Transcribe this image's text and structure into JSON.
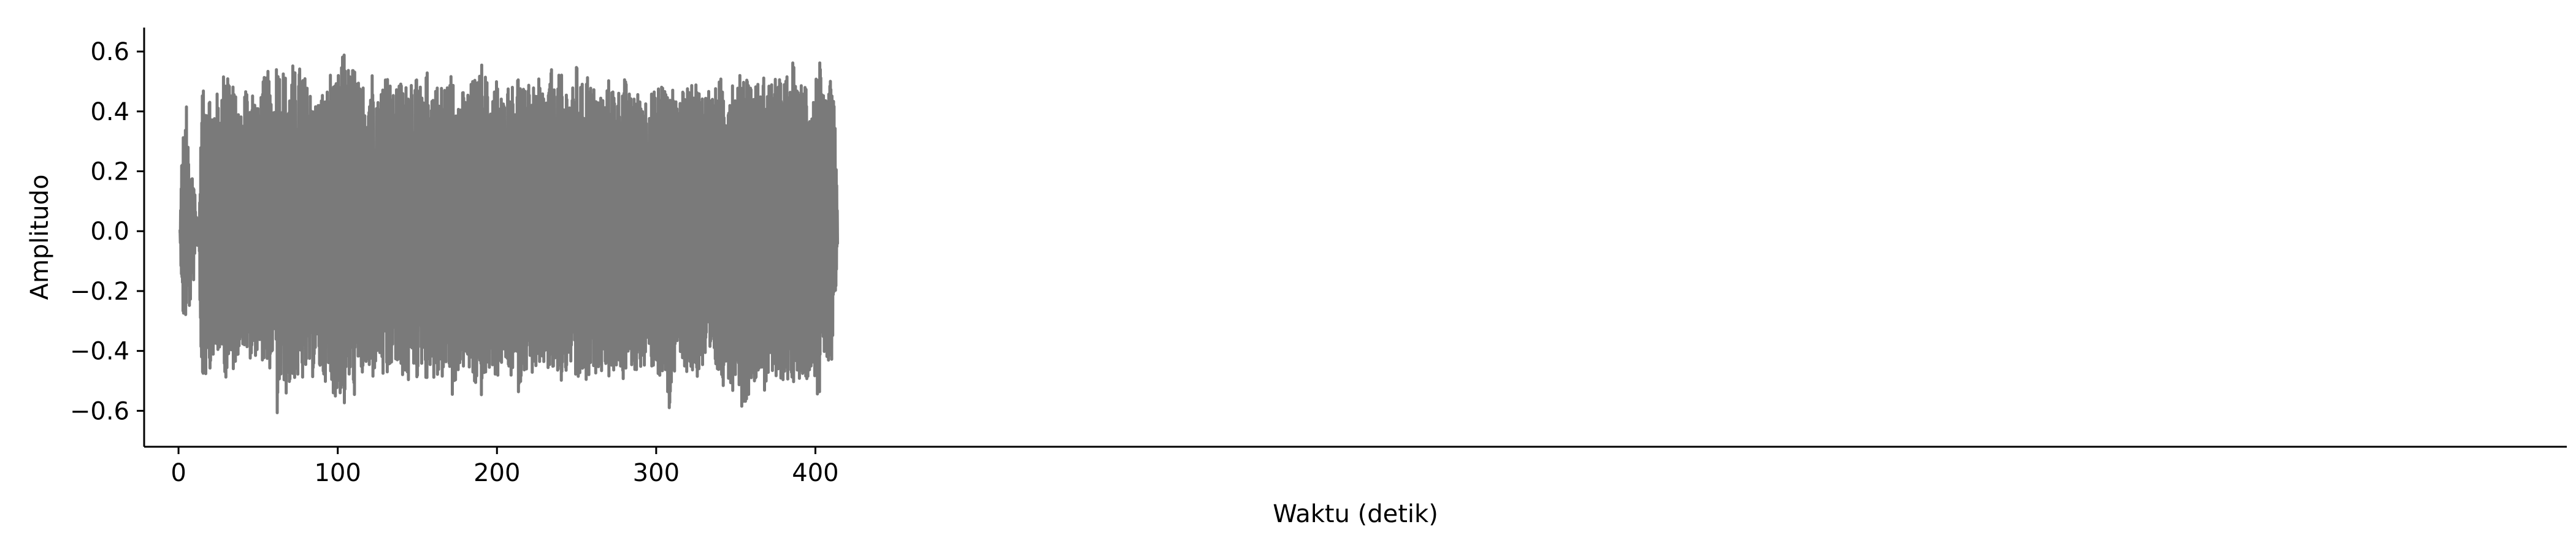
{
  "chart_data": {
    "type": "line",
    "title": "",
    "xlabel": "Waktu (detik)",
    "ylabel": "Amplitudo",
    "xlim": [
      -21.6,
      1500
    ],
    "ylim": [
      -0.72,
      0.68
    ],
    "x_ticks": [
      0,
      100,
      200,
      300,
      400
    ],
    "x_tick_labels": [
      "0",
      "100",
      "200",
      "300",
      "400"
    ],
    "y_ticks": [
      -0.6,
      -0.4,
      -0.2,
      0.0,
      0.2,
      0.4,
      0.6
    ],
    "y_tick_labels": [
      "−0.6",
      "−0.4",
      "−0.2",
      "0.0",
      "0.2",
      "0.4",
      "0.6"
    ],
    "grid": false,
    "legend": "none",
    "color": "#7a7a7a",
    "series": [
      {
        "x": [
          0,
          1,
          2,
          3,
          4,
          5,
          6,
          7,
          8,
          9,
          10,
          11,
          12,
          13,
          14,
          15,
          16,
          17,
          18,
          19,
          20,
          22,
          24,
          26,
          28,
          30,
          32,
          34,
          36,
          38,
          40,
          42,
          44,
          46,
          48,
          50,
          52,
          54,
          56,
          58,
          60,
          62,
          64,
          66,
          68,
          70,
          72,
          74,
          76,
          78,
          80,
          82,
          84,
          86,
          88,
          90,
          92,
          94,
          96,
          98,
          100,
          102,
          104,
          106,
          108,
          110,
          112,
          114,
          116,
          118,
          120,
          122,
          124,
          126,
          128,
          130,
          132,
          134,
          136,
          138,
          140,
          142,
          144,
          146,
          148,
          150,
          152,
          154,
          156,
          158,
          160,
          162,
          164,
          166,
          168,
          170,
          172,
          174,
          176,
          178,
          180,
          182,
          184,
          186,
          188,
          190,
          192,
          194,
          196,
          198,
          200,
          202,
          204,
          206,
          208,
          210,
          212,
          214,
          216,
          218,
          220,
          222,
          224,
          226,
          228,
          230,
          232,
          234,
          236,
          238,
          240,
          242,
          244,
          246,
          248,
          250,
          252,
          254,
          256,
          258,
          260,
          262,
          264,
          266,
          268,
          270,
          272,
          274,
          276,
          278,
          280,
          282,
          284,
          286,
          288,
          290,
          292,
          294,
          296,
          298,
          300,
          302,
          304,
          306,
          308,
          310,
          312,
          314,
          316,
          318,
          320,
          322,
          324,
          326,
          328,
          330,
          332,
          334,
          336,
          338,
          340,
          342,
          344,
          346,
          348,
          350,
          352,
          354,
          356,
          358,
          360,
          362,
          364,
          366,
          368,
          370,
          372,
          374,
          376,
          378,
          380,
          382,
          384,
          386,
          388,
          390,
          392,
          394,
          396,
          398,
          400,
          402,
          404,
          406,
          408,
          410,
          412,
          414,
          416,
          418,
          420,
          422,
          424,
          426,
          428,
          430,
          432
        ],
        "y_max": [
          0.0,
          0.0,
          0.24,
          0.33,
          0.3,
          0.45,
          0.28,
          0.18,
          0.2,
          0.2,
          0.18,
          0.05,
          0.05,
          0.05,
          0.3,
          0.5,
          0.45,
          0.45,
          0.55,
          0.5,
          0.45,
          0.42,
          0.47,
          0.42,
          0.52,
          0.61,
          0.53,
          0.5,
          0.45,
          0.42,
          0.38,
          0.52,
          0.45,
          0.5,
          0.46,
          0.41,
          0.48,
          0.52,
          0.54,
          0.48,
          0.45,
          0.62,
          0.52,
          0.55,
          0.51,
          0.48,
          0.57,
          0.51,
          0.55,
          0.56,
          0.5,
          0.47,
          0.5,
          0.43,
          0.45,
          0.48,
          0.45,
          0.5,
          0.55,
          0.48,
          0.52,
          0.56,
          0.61,
          0.57,
          0.52,
          0.57,
          0.53,
          0.48,
          0.5,
          0.46,
          0.52,
          0.55,
          0.48,
          0.43,
          0.52,
          0.57,
          0.52,
          0.48,
          0.44,
          0.52,
          0.5,
          0.48,
          0.51,
          0.55,
          0.48,
          0.52,
          0.49,
          0.43,
          0.55,
          0.46,
          0.51,
          0.5,
          0.48,
          0.5,
          0.51,
          0.48,
          0.58,
          0.52,
          0.45,
          0.48,
          0.45,
          0.48,
          0.5,
          0.52,
          0.5,
          0.57,
          0.55,
          0.5,
          0.45,
          0.48,
          0.52,
          0.48,
          0.44,
          0.48,
          0.51,
          0.49,
          0.52,
          0.55,
          0.48,
          0.47,
          0.56,
          0.5,
          0.46,
          0.51,
          0.5,
          0.46,
          0.49,
          0.55,
          0.48,
          0.51,
          0.54,
          0.48,
          0.5,
          0.45,
          0.49,
          0.56,
          0.51,
          0.49,
          0.55,
          0.52,
          0.47,
          0.5,
          0.45,
          0.48,
          0.44,
          0.51,
          0.5,
          0.48,
          0.47,
          0.5,
          0.52,
          0.48,
          0.45,
          0.5,
          0.47,
          0.45,
          0.49,
          0.44,
          0.46,
          0.48,
          0.45,
          0.51,
          0.52,
          0.49,
          0.44,
          0.47,
          0.5,
          0.44,
          0.47,
          0.46,
          0.5,
          0.48,
          0.53,
          0.49,
          0.47,
          0.48,
          0.5,
          0.47,
          0.46,
          0.49,
          0.51,
          0.52,
          0.48,
          0.5,
          0.53,
          0.47,
          0.5,
          0.58,
          0.52,
          0.55,
          0.49,
          0.5,
          0.5,
          0.46,
          0.54,
          0.49,
          0.52,
          0.48,
          0.55,
          0.5,
          0.51,
          0.53,
          0.47,
          0.58,
          0.46,
          0.52,
          0.48,
          0.53,
          0.48,
          0.44,
          0.5,
          0.62,
          0.48,
          0.43,
          0.47,
          0.52,
          0.42,
          0.05
        ],
        "y_min": [
          0.0,
          0.0,
          -0.25,
          -0.3,
          -0.25,
          -0.34,
          -0.18,
          -0.28,
          -0.2,
          -0.18,
          -0.15,
          -0.05,
          -0.05,
          -0.05,
          -0.45,
          -0.55,
          -0.48,
          -0.5,
          -0.4,
          -0.45,
          -0.46,
          -0.42,
          -0.44,
          -0.4,
          -0.44,
          -0.5,
          -0.46,
          -0.48,
          -0.44,
          -0.4,
          -0.38,
          -0.4,
          -0.43,
          -0.45,
          -0.42,
          -0.4,
          -0.42,
          -0.46,
          -0.5,
          -0.44,
          -0.4,
          -0.63,
          -0.53,
          -0.5,
          -0.56,
          -0.52,
          -0.51,
          -0.48,
          -0.55,
          -0.5,
          -0.48,
          -0.46,
          -0.5,
          -0.42,
          -0.47,
          -0.49,
          -0.5,
          -0.52,
          -0.53,
          -0.55,
          -0.58,
          -0.54,
          -0.6,
          -0.52,
          -0.5,
          -0.56,
          -0.53,
          -0.47,
          -0.5,
          -0.46,
          -0.52,
          -0.5,
          -0.45,
          -0.42,
          -0.48,
          -0.56,
          -0.5,
          -0.45,
          -0.43,
          -0.5,
          -0.48,
          -0.5,
          -0.52,
          -0.48,
          -0.46,
          -0.5,
          -0.47,
          -0.42,
          -0.53,
          -0.45,
          -0.5,
          -0.53,
          -0.47,
          -0.5,
          -0.48,
          -0.47,
          -0.58,
          -0.51,
          -0.46,
          -0.48,
          -0.44,
          -0.47,
          -0.5,
          -0.53,
          -0.52,
          -0.56,
          -0.52,
          -0.5,
          -0.45,
          -0.47,
          -0.5,
          -0.47,
          -0.43,
          -0.47,
          -0.5,
          -0.48,
          -0.51,
          -0.55,
          -0.47,
          -0.46,
          -0.5,
          -0.48,
          -0.46,
          -0.5,
          -0.5,
          -0.44,
          -0.47,
          -0.52,
          -0.46,
          -0.5,
          -0.53,
          -0.47,
          -0.49,
          -0.44,
          -0.48,
          -0.55,
          -0.5,
          -0.48,
          -0.53,
          -0.5,
          -0.47,
          -0.48,
          -0.45,
          -0.47,
          -0.44,
          -0.5,
          -0.49,
          -0.46,
          -0.45,
          -0.48,
          -0.52,
          -0.46,
          -0.44,
          -0.49,
          -0.47,
          -0.45,
          -0.48,
          -0.44,
          -0.46,
          -0.46,
          -0.45,
          -0.51,
          -0.52,
          -0.5,
          -0.64,
          -0.5,
          -0.49,
          -0.44,
          -0.46,
          -0.45,
          -0.5,
          -0.47,
          -0.52,
          -0.49,
          -0.47,
          -0.47,
          -0.5,
          -0.46,
          -0.46,
          -0.48,
          -0.5,
          -0.52,
          -0.47,
          -0.5,
          -0.55,
          -0.47,
          -0.52,
          -0.6,
          -0.58,
          -0.55,
          -0.5,
          -0.5,
          -0.5,
          -0.45,
          -0.54,
          -0.49,
          -0.52,
          -0.48,
          -0.55,
          -0.5,
          -0.5,
          -0.52,
          -0.46,
          -0.57,
          -0.45,
          -0.5,
          -0.48,
          -0.53,
          -0.47,
          -0.44,
          -0.5,
          -0.58,
          -0.47,
          -0.42,
          -0.45,
          -0.5,
          -0.32,
          -0.05
        ]
      }
    ]
  }
}
